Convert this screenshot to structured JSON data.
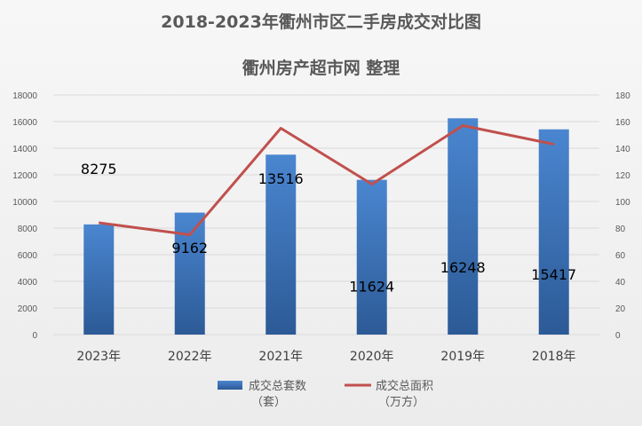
{
  "header": {
    "title": "2018-2023年衢州市区二手房成交对比图",
    "subtitle": "衢州房产超市网 整理"
  },
  "colors": {
    "bar_top": "#4a86d0",
    "bar_bottom": "#2c5a96",
    "line": "#c0504d",
    "grid": "#d9d9d9"
  },
  "legend": {
    "bar_label_1": "成交总套数",
    "bar_label_2": "（套）",
    "line_label_1": "成交总面积",
    "line_label_2": "（万方）",
    "position": "bottom"
  },
  "chart_data": {
    "type": "bar",
    "categories": [
      "2023年",
      "2022年",
      "2021年",
      "2020年",
      "2019年",
      "2018年"
    ],
    "series": [
      {
        "name": "成交总套数（套）",
        "type": "bar",
        "axis": "left",
        "values": [
          8275,
          9162,
          13516,
          11624,
          16248,
          15417
        ]
      },
      {
        "name": "成交总面积（万方）",
        "type": "line",
        "axis": "right",
        "values": [
          84,
          75,
          155,
          113,
          157,
          143
        ]
      }
    ],
    "data_labels": [
      "8275",
      "9162",
      "13516",
      "11624",
      "16248",
      "15417"
    ],
    "ylim": [
      0,
      18000
    ],
    "yticks": [
      "0",
      "2000",
      "4000",
      "6000",
      "8000",
      "10000",
      "12000",
      "14000",
      "16000",
      "18000"
    ],
    "y2lim": [
      0,
      180
    ],
    "y2ticks": [
      "0",
      "20",
      "40",
      "60",
      "80",
      "100",
      "120",
      "140",
      "160",
      "180"
    ],
    "grid": true
  }
}
